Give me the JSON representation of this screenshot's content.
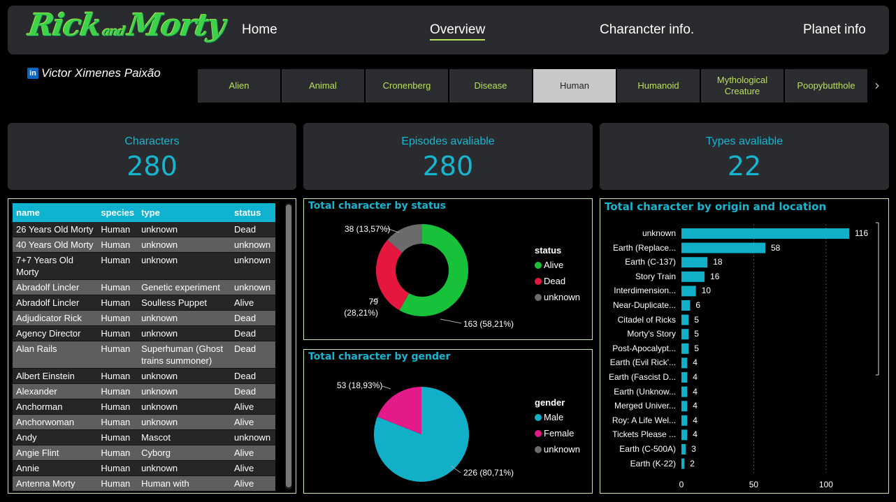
{
  "nav": {
    "logo": "Rick and Morty",
    "links": [
      "Home",
      "Overview",
      "Charancter info.",
      "Planet info"
    ]
  },
  "author": "Victor Ximenes Paixão",
  "tabs": [
    "Alien",
    "Animal",
    "Cronenberg",
    "Disease",
    "Human",
    "Humanoid",
    "Mythological Creature",
    "Poopybutthole"
  ],
  "selected_tab": "Human",
  "kpis": [
    {
      "label": "Characters",
      "value": "280"
    },
    {
      "label": "Episodes avaliable",
      "value": "280"
    },
    {
      "label": "Types avaliable",
      "value": "22"
    }
  ],
  "table": {
    "headers": [
      "name",
      "species",
      "type",
      "status"
    ],
    "rows": [
      [
        "26 Years Old Morty",
        "Human",
        "unknown",
        "Dead"
      ],
      [
        "40 Years Old Morty",
        "Human",
        "unknown",
        "unknown"
      ],
      [
        "7+7 Years Old Morty",
        "Human",
        "unknown",
        "unknown"
      ],
      [
        "Abradolf Lincler",
        "Human",
        "Genetic experiment",
        "unknown"
      ],
      [
        "Abradolf Lincler",
        "Human",
        "Soulless Puppet",
        "Alive"
      ],
      [
        "Adjudicator Rick",
        "Human",
        "unknown",
        "Dead"
      ],
      [
        "Agency Director",
        "Human",
        "unknown",
        "Dead"
      ],
      [
        "Alan Rails",
        "Human",
        "Superhuman (Ghost trains summoner)",
        "Dead"
      ],
      [
        "Albert Einstein",
        "Human",
        "unknown",
        "Dead"
      ],
      [
        "Alexander",
        "Human",
        "unknown",
        "Dead"
      ],
      [
        "Anchorman",
        "Human",
        "unknown",
        "Alive"
      ],
      [
        "Anchorwoman",
        "Human",
        "unknown",
        "Alive"
      ],
      [
        "Andy",
        "Human",
        "Mascot",
        "unknown"
      ],
      [
        "Angie Flint",
        "Human",
        "Cyborg",
        "Alive"
      ],
      [
        "Annie",
        "Human",
        "unknown",
        "Alive"
      ],
      [
        "Antenna Morty",
        "Human",
        "Human with",
        "Alive"
      ]
    ]
  },
  "chart_data": [
    {
      "type": "pie",
      "subtype": "donut",
      "title": "Total character by status",
      "legend_title": "status",
      "legend_position": "right",
      "slices": [
        {
          "name": "Alive",
          "value": 163,
          "label": "163 (58,21%)",
          "color": "#17c13a"
        },
        {
          "name": "Dead",
          "value": 79,
          "label": "79 (28,21%)",
          "color": "#e5173f"
        },
        {
          "name": "unknown",
          "value": 38,
          "label": "38 (13,57%)",
          "color": "#6b6b6b"
        }
      ]
    },
    {
      "type": "pie",
      "title": "Total character by gender",
      "legend_title": "gender",
      "legend_position": "right",
      "slices": [
        {
          "name": "Male",
          "value": 226,
          "label": "226 (80,71%)",
          "color": "#12b0c8"
        },
        {
          "name": "Female",
          "value": 53,
          "label": "53 (18,93%)",
          "color": "#e51a8a"
        },
        {
          "name": "unknown",
          "value": 0,
          "label": "",
          "color": "#6b6b6b"
        }
      ]
    },
    {
      "type": "bar",
      "orientation": "horizontal",
      "title": "Total character by origin and location",
      "xlim": [
        0,
        116
      ],
      "x_ticks": [
        0,
        50,
        100
      ],
      "grid": true,
      "color": "#12b0c8",
      "categories": [
        "unknown",
        "Earth (Replace...",
        "Earth (C-137)",
        "Story Train",
        "Interdimension...",
        "Near-Duplicate...",
        "Citadel of Ricks",
        "Morty's Story",
        "Post-Apocalypt...",
        "Earth (Evil Rick'...",
        "Earth (Fascist D...",
        "Earth (Unknow...",
        "Merged Univer...",
        "Roy: A Life Wel...",
        "Tickets Please ...",
        "Earth (C-500A)",
        "Earth (K-22)"
      ],
      "values": [
        116,
        58,
        18,
        16,
        10,
        6,
        5,
        5,
        5,
        4,
        4,
        4,
        4,
        4,
        4,
        3,
        2
      ]
    }
  ]
}
